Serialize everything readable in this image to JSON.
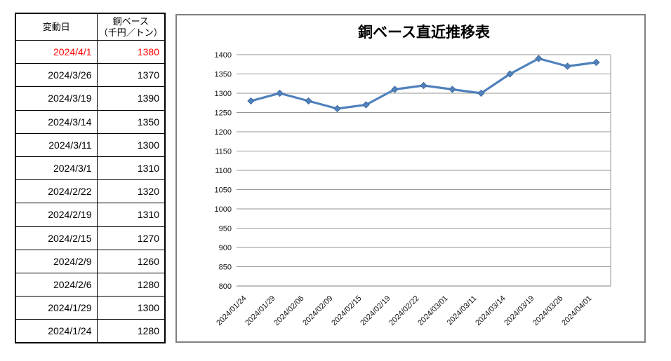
{
  "table": {
    "headers": {
      "date": "変動日",
      "price_line1": "銅ベース",
      "price_line2": "（千円／トン）"
    },
    "rows": [
      {
        "date": "2024/4/1",
        "value": "1380",
        "highlight": true
      },
      {
        "date": "2024/3/26",
        "value": "1370",
        "highlight": false
      },
      {
        "date": "2024/3/19",
        "value": "1390",
        "highlight": false
      },
      {
        "date": "2024/3/14",
        "value": "1350",
        "highlight": false
      },
      {
        "date": "2024/3/11",
        "value": "1300",
        "highlight": false
      },
      {
        "date": "2024/3/1",
        "value": "1310",
        "highlight": false
      },
      {
        "date": "2024/2/22",
        "value": "1320",
        "highlight": false
      },
      {
        "date": "2024/2/19",
        "value": "1310",
        "highlight": false
      },
      {
        "date": "2024/2/15",
        "value": "1270",
        "highlight": false
      },
      {
        "date": "2024/2/9",
        "value": "1260",
        "highlight": false
      },
      {
        "date": "2024/2/6",
        "value": "1280",
        "highlight": false
      },
      {
        "date": "2024/1/29",
        "value": "1300",
        "highlight": false
      },
      {
        "date": "2024/1/24",
        "value": "1280",
        "highlight": false
      }
    ],
    "highlight_color": "#ff0000",
    "text_color": "#000000"
  },
  "chart_data": {
    "type": "line",
    "title": "銅ベース直近推移表",
    "categories": [
      "2024/01/24",
      "2024/01/29",
      "2024/02/06",
      "2024/02/09",
      "2024/02/15",
      "2024/02/19",
      "2024/02/22",
      "2024/03/01",
      "2024/03/11",
      "2024/03/14",
      "2024/03/19",
      "2024/03/26",
      "2024/04/01"
    ],
    "values": [
      1280,
      1300,
      1280,
      1260,
      1270,
      1310,
      1320,
      1310,
      1300,
      1350,
      1390,
      1370,
      1380
    ],
    "xlabel": "",
    "ylabel": "",
    "ylim": [
      800,
      1400
    ],
    "ytick_step": 50,
    "grid": true,
    "legend": "none",
    "marker": "diamond",
    "series_color": "#4F81BD",
    "marker_edge_color": "#3A6494",
    "gridline_color": "#969696",
    "axis_color": "#808080"
  }
}
